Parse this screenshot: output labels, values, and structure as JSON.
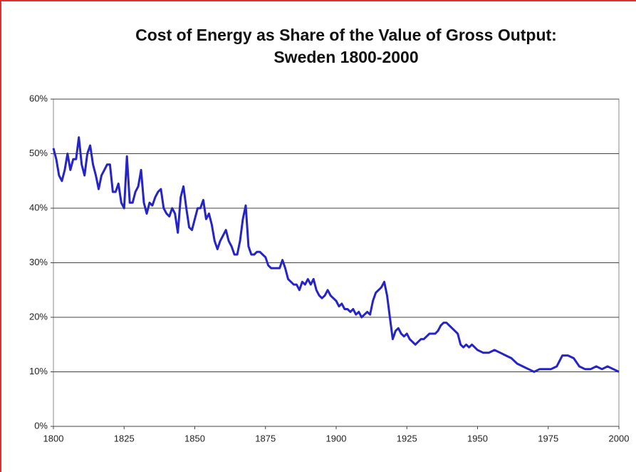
{
  "chart_data": {
    "type": "line",
    "title": "Cost of Energy as Share of the Value of Gross Output: Sweden 1800-2000",
    "x": [
      1800,
      1801,
      1802,
      1803,
      1804,
      1805,
      1806,
      1807,
      1808,
      1809,
      1810,
      1811,
      1812,
      1813,
      1814,
      1815,
      1816,
      1817,
      1818,
      1819,
      1820,
      1821,
      1822,
      1823,
      1824,
      1825,
      1826,
      1827,
      1828,
      1829,
      1830,
      1831,
      1832,
      1833,
      1834,
      1835,
      1836,
      1837,
      1838,
      1839,
      1840,
      1841,
      1842,
      1843,
      1844,
      1845,
      1846,
      1847,
      1848,
      1849,
      1850,
      1851,
      1852,
      1853,
      1854,
      1855,
      1856,
      1857,
      1858,
      1859,
      1860,
      1861,
      1862,
      1863,
      1864,
      1865,
      1866,
      1867,
      1868,
      1869,
      1870,
      1871,
      1872,
      1873,
      1874,
      1875,
      1876,
      1877,
      1878,
      1879,
      1880,
      1881,
      1882,
      1883,
      1884,
      1885,
      1886,
      1887,
      1888,
      1889,
      1890,
      1891,
      1892,
      1893,
      1894,
      1895,
      1896,
      1897,
      1898,
      1899,
      1900,
      1901,
      1902,
      1903,
      1904,
      1905,
      1906,
      1907,
      1908,
      1909,
      1910,
      1911,
      1912,
      1913,
      1914,
      1915,
      1916,
      1917,
      1918,
      1919,
      1920,
      1921,
      1922,
      1923,
      1924,
      1925,
      1926,
      1927,
      1928,
      1929,
      1930,
      1931,
      1932,
      1933,
      1934,
      1935,
      1936,
      1937,
      1938,
      1939,
      1940,
      1941,
      1942,
      1943,
      1944,
      1945,
      1946,
      1947,
      1948,
      1949,
      1950,
      1952,
      1954,
      1956,
      1958,
      1960,
      1962,
      1964,
      1966,
      1968,
      1970,
      1972,
      1974,
      1976,
      1978,
      1980,
      1982,
      1984,
      1986,
      1988,
      1990,
      1992,
      1994,
      1996,
      1998,
      2000
    ],
    "values": [
      51,
      49,
      46,
      45,
      47,
      50,
      47,
      49,
      49,
      53,
      48,
      46,
      50,
      51.5,
      48,
      46,
      43.5,
      46,
      47,
      48,
      48,
      43,
      43,
      44.5,
      41,
      40,
      49.5,
      41,
      41,
      43,
      44,
      47,
      41,
      39,
      41,
      40.5,
      42,
      43,
      43.5,
      40,
      39,
      38.5,
      40,
      39,
      35.5,
      42,
      44,
      40,
      36.5,
      36,
      38,
      40,
      40,
      41.5,
      38,
      39,
      37,
      34,
      32.5,
      34,
      35,
      36,
      34,
      33,
      31.5,
      31.5,
      34,
      38,
      40.5,
      33,
      31.5,
      31.5,
      32,
      32,
      31.5,
      31,
      29.5,
      29,
      29,
      29,
      29,
      30.5,
      29,
      27,
      26.5,
      26,
      26,
      25,
      26.5,
      26,
      27,
      26,
      27,
      25,
      24,
      23.5,
      24,
      25,
      24,
      23.5,
      23,
      22,
      22.5,
      21.5,
      21.5,
      21,
      21.5,
      20.5,
      21,
      20,
      20.5,
      21,
      20.5,
      23,
      24.5,
      25,
      25.5,
      26.5,
      24,
      20,
      16,
      17.5,
      18,
      17,
      16.5,
      17,
      16,
      15.5,
      15,
      15.5,
      16,
      16,
      16.5,
      17,
      17,
      17,
      17.5,
      18.5,
      19,
      19,
      18.5,
      18,
      17.5,
      17,
      15,
      14.5,
      15,
      14.5,
      15,
      14.5,
      14,
      13.5,
      13.5,
      14,
      13.5,
      13,
      12.5,
      11.5,
      11,
      10.5,
      10,
      10.5,
      10.5,
      10.5,
      11,
      13,
      13,
      12.5,
      11,
      10.5,
      10.5,
      11,
      10.5,
      11,
      10.5,
      10
    ],
    "color": "#2424c8",
    "xlim": [
      1800,
      2000
    ],
    "xticks": [
      1800,
      1825,
      1850,
      1875,
      1900,
      1925,
      1950,
      1975,
      2000
    ],
    "ylim": [
      0,
      60
    ],
    "yticks": [
      {
        "value": 0,
        "label": "0%"
      },
      {
        "value": 10,
        "label": "10%"
      },
      {
        "value": 20,
        "label": "20%"
      },
      {
        "value": 30,
        "label": "30%"
      },
      {
        "value": 40,
        "label": "40%"
      },
      {
        "value": 50,
        "label": "50%"
      },
      {
        "value": 60,
        "label": "60%"
      }
    ],
    "grid": true
  }
}
